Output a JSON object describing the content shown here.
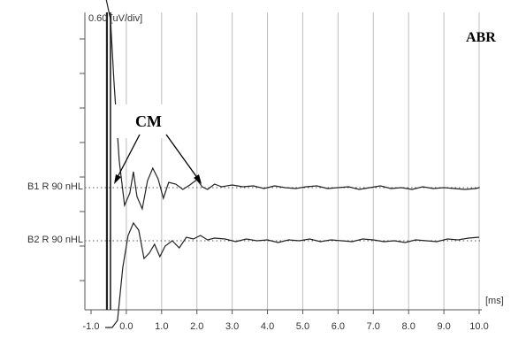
{
  "chart_data": {
    "type": "line",
    "scale_label": "0.60 [uV/div]",
    "x_unit_label": "[ms]",
    "title": "ABR",
    "annotation": "CM",
    "xlim": [
      -1.0,
      10.0
    ],
    "x_ticks": [
      "-1.0",
      "0.0",
      "1.0",
      "2.0",
      "3.0",
      "4.0",
      "5.0",
      "6.0",
      "7.0",
      "8.0",
      "9.0",
      "10.0"
    ],
    "x_tick_values": [
      -1.0,
      0.0,
      1.0,
      2.0,
      3.0,
      4.0,
      5.0,
      6.0,
      7.0,
      8.0,
      9.0,
      10.0
    ],
    "grid": true,
    "series": [
      {
        "name": "B1 R 90 nHL",
        "x": [
          -0.6,
          -0.45,
          -0.35,
          -0.2,
          -0.05,
          0.1,
          0.2,
          0.3,
          0.45,
          0.6,
          0.75,
          0.9,
          1.05,
          1.2,
          1.4,
          1.6,
          1.8,
          2.0,
          2.15,
          2.3,
          2.5,
          2.7,
          3.0,
          3.3,
          3.6,
          3.9,
          4.2,
          4.5,
          4.8,
          5.1,
          5.4,
          5.7,
          6.0,
          6.3,
          6.6,
          6.9,
          7.2,
          7.5,
          7.8,
          8.1,
          8.4,
          8.7,
          9.0,
          9.3,
          9.6,
          9.9,
          10.0
        ],
        "y": [
          13,
          9.5,
          6,
          1.5,
          -1.0,
          -0.3,
          0.9,
          -0.5,
          -1.2,
          0.4,
          1.1,
          0.5,
          -0.6,
          0.3,
          0.2,
          -0.1,
          0.15,
          0.45,
          0.05,
          -0.1,
          0.2,
          0.05,
          0.15,
          0.05,
          0.1,
          -0.05,
          0.1,
          0.0,
          -0.05,
          0.05,
          0.1,
          -0.05,
          0.0,
          0.05,
          -0.1,
          0.0,
          0.1,
          -0.05,
          0.0,
          -0.1,
          0.05,
          -0.05,
          0.0,
          -0.05,
          -0.1,
          -0.05,
          0.0
        ]
      },
      {
        "name": "B2 R 90 nHL",
        "x": [
          -0.6,
          -0.5,
          -0.4,
          -0.25,
          -0.1,
          0.05,
          0.2,
          0.35,
          0.5,
          0.65,
          0.8,
          0.95,
          1.1,
          1.3,
          1.5,
          1.7,
          1.9,
          2.1,
          2.3,
          2.5,
          2.8,
          3.1,
          3.4,
          3.7,
          4.0,
          4.3,
          4.6,
          4.9,
          5.2,
          5.5,
          5.8,
          6.1,
          6.4,
          6.7,
          7.0,
          7.3,
          7.6,
          7.9,
          8.2,
          8.5,
          8.8,
          9.1,
          9.4,
          9.7,
          10.0
        ],
        "y": [
          -13,
          -11,
          -8,
          -4.5,
          -1.5,
          0.3,
          1.0,
          0.6,
          -1.0,
          -0.7,
          -0.2,
          -0.9,
          -0.3,
          0.0,
          -0.4,
          0.2,
          0.1,
          0.3,
          0.05,
          0.15,
          0.1,
          -0.05,
          0.1,
          0.0,
          0.05,
          -0.1,
          0.05,
          0.0,
          0.1,
          -0.05,
          0.05,
          0.0,
          -0.05,
          0.1,
          0.05,
          -0.05,
          0.0,
          -0.1,
          0.05,
          0.0,
          -0.05,
          0.1,
          0.05,
          0.15,
          0.2
        ]
      }
    ]
  }
}
